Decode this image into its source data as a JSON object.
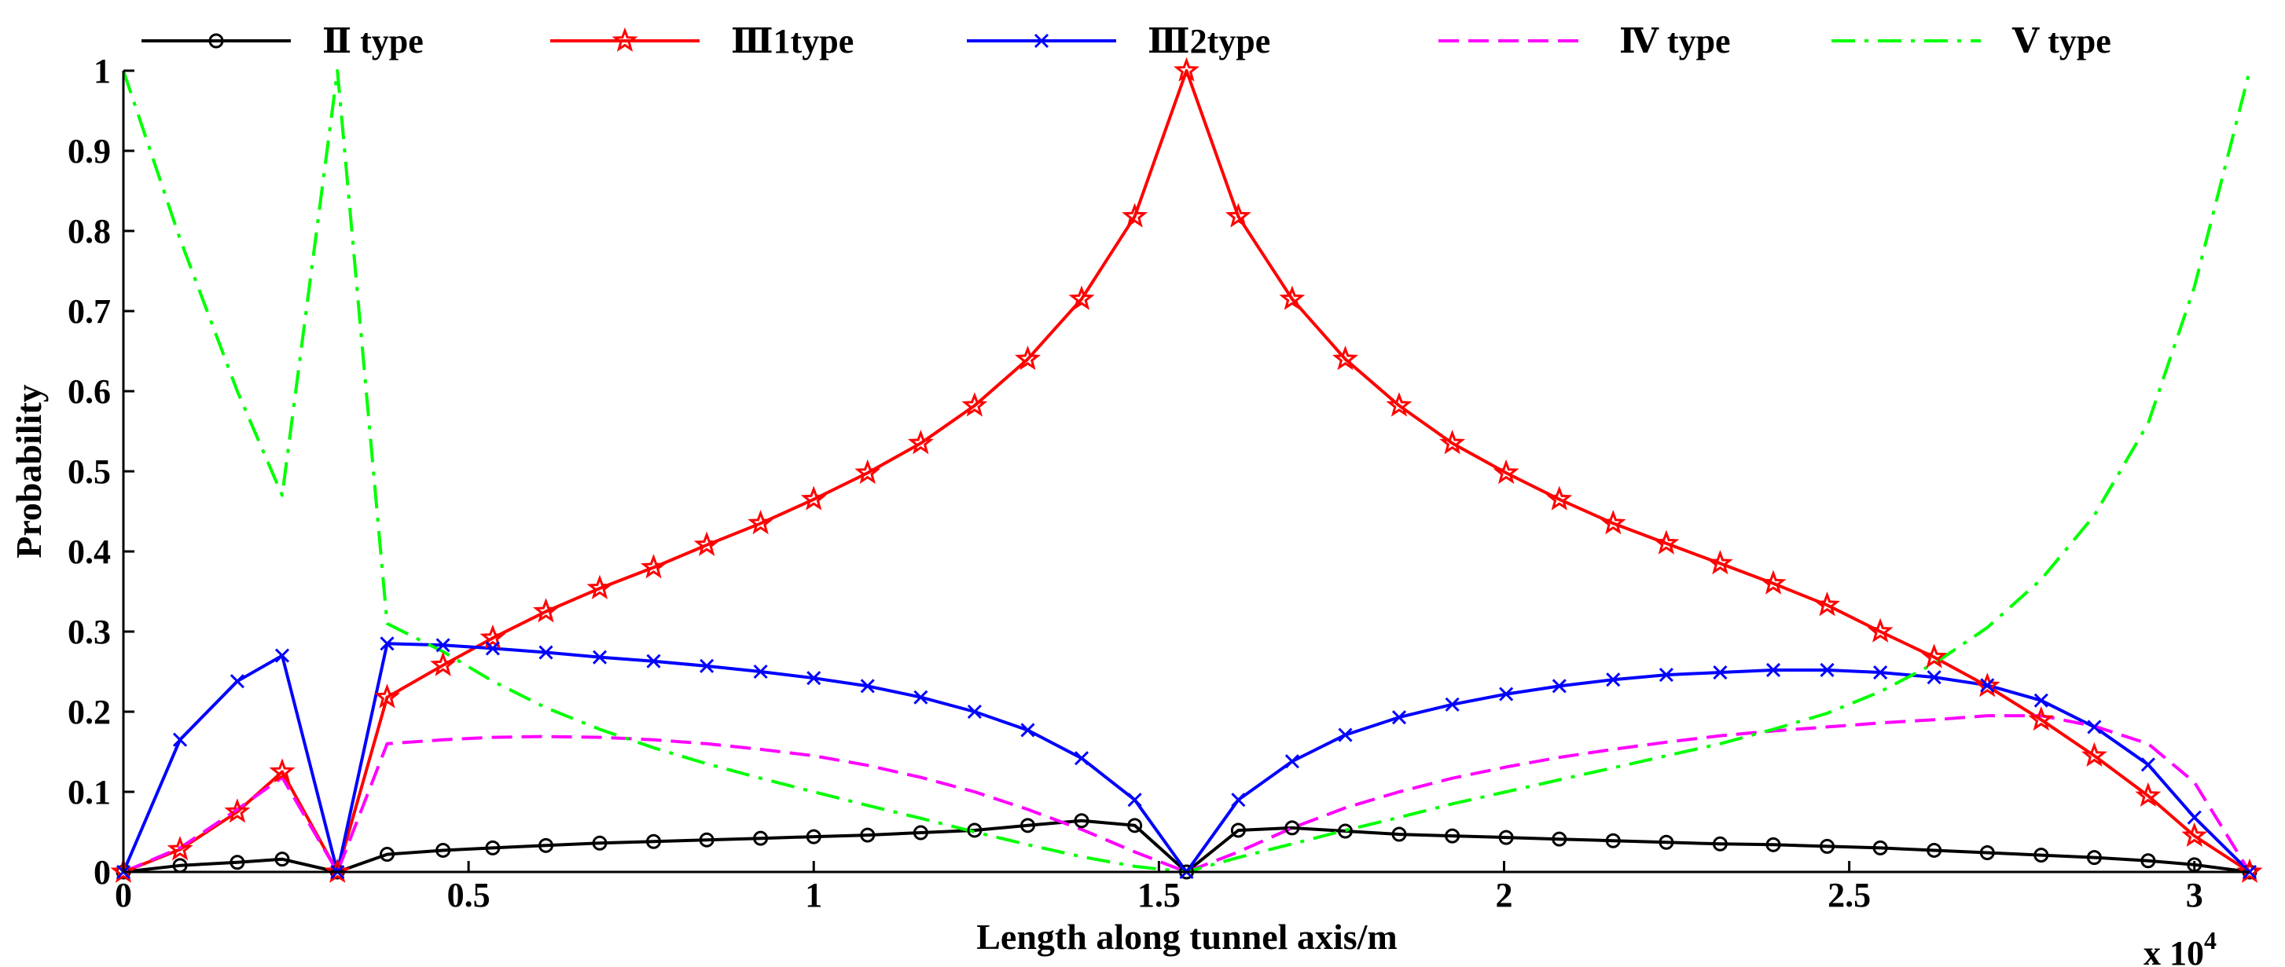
{
  "chart_data": {
    "type": "line",
    "title": "",
    "xlabel": "Length along tunnel axis/m",
    "ylabel": "Probability",
    "x_multiplier_label": "x 10",
    "x_multiplier_exponent": "4",
    "xlim": [
      0,
      3.08
    ],
    "ylim": [
      0,
      1
    ],
    "x_ticks": [
      0,
      0.5,
      1,
      1.5,
      2,
      2.5,
      3
    ],
    "x_tick_labels": [
      "0",
      "0.5",
      "1",
      "1.5",
      "2",
      "2.5",
      "3"
    ],
    "y_ticks": [
      0,
      0.1,
      0.2,
      0.3,
      0.4,
      0.5,
      0.6,
      0.7,
      0.8,
      0.9,
      1
    ],
    "y_tick_labels": [
      "0",
      "0.1",
      "0.2",
      "0.3",
      "0.4",
      "0.5",
      "0.6",
      "0.7",
      "0.8",
      "0.9",
      "1"
    ],
    "grid": false,
    "legend_position": "top",
    "series": [
      {
        "name": "Ⅱ type",
        "color": "#000000",
        "marker": "circle",
        "dash": "solid",
        "x": [
          0,
          0.082,
          0.165,
          0.23,
          0.31,
          0.382,
          0.463,
          0.535,
          0.612,
          0.69,
          0.768,
          0.845,
          0.923,
          1,
          1.078,
          1.155,
          1.233,
          1.31,
          1.388,
          1.465,
          1.54,
          1.615,
          1.693,
          1.77,
          1.848,
          1.925,
          2.003,
          2.08,
          2.158,
          2.235,
          2.313,
          2.39,
          2.468,
          2.545,
          2.623,
          2.7,
          2.778,
          2.855,
          2.933,
          3,
          3.08
        ],
        "y": [
          0,
          0.008,
          0.012,
          0.016,
          0,
          0.022,
          0.027,
          0.03,
          0.033,
          0.036,
          0.038,
          0.04,
          0.042,
          0.044,
          0.046,
          0.049,
          0.052,
          0.058,
          0.064,
          0.058,
          0,
          0.052,
          0.055,
          0.051,
          0.047,
          0.045,
          0.043,
          0.041,
          0.039,
          0.037,
          0.035,
          0.034,
          0.032,
          0.03,
          0.027,
          0.024,
          0.021,
          0.018,
          0.014,
          0.009,
          0
        ]
      },
      {
        "name": "Ⅲ1type",
        "color": "#ff0000",
        "marker": "star",
        "dash": "solid",
        "x": [
          0,
          0.082,
          0.165,
          0.23,
          0.31,
          0.382,
          0.463,
          0.535,
          0.612,
          0.69,
          0.768,
          0.845,
          0.923,
          1,
          1.078,
          1.155,
          1.233,
          1.31,
          1.388,
          1.465,
          1.54,
          1.615,
          1.693,
          1.77,
          1.848,
          1.925,
          2.003,
          2.08,
          2.158,
          2.235,
          2.313,
          2.39,
          2.468,
          2.545,
          2.623,
          2.7,
          2.778,
          2.855,
          2.933,
          3,
          3.08
        ],
        "y": [
          0,
          0.028,
          0.075,
          0.125,
          0,
          0.218,
          0.258,
          0.292,
          0.325,
          0.354,
          0.38,
          0.408,
          0.435,
          0.465,
          0.498,
          0.535,
          0.582,
          0.64,
          0.715,
          0.818,
          1,
          0.818,
          0.715,
          0.64,
          0.582,
          0.535,
          0.498,
          0.465,
          0.435,
          0.41,
          0.385,
          0.36,
          0.333,
          0.3,
          0.268,
          0.232,
          0.19,
          0.145,
          0.095,
          0.045,
          0
        ]
      },
      {
        "name": "Ⅲ2type",
        "color": "#0000ff",
        "marker": "x",
        "dash": "solid",
        "x": [
          0,
          0.082,
          0.165,
          0.23,
          0.31,
          0.382,
          0.463,
          0.535,
          0.612,
          0.69,
          0.768,
          0.845,
          0.923,
          1,
          1.078,
          1.155,
          1.233,
          1.31,
          1.388,
          1.465,
          1.54,
          1.615,
          1.693,
          1.77,
          1.848,
          1.925,
          2.003,
          2.08,
          2.158,
          2.235,
          2.313,
          2.39,
          2.468,
          2.545,
          2.623,
          2.7,
          2.778,
          2.855,
          2.933,
          3,
          3.08
        ],
        "y": [
          0,
          0.165,
          0.238,
          0.27,
          0,
          0.285,
          0.283,
          0.279,
          0.274,
          0.268,
          0.263,
          0.257,
          0.25,
          0.242,
          0.232,
          0.218,
          0.2,
          0.177,
          0.142,
          0.09,
          0,
          0.09,
          0.138,
          0.171,
          0.193,
          0.209,
          0.222,
          0.232,
          0.24,
          0.246,
          0.249,
          0.252,
          0.252,
          0.249,
          0.243,
          0.233,
          0.214,
          0.181,
          0.134,
          0.068,
          0
        ]
      },
      {
        "name": "Ⅳ type",
        "color": "#ff00ff",
        "marker": "none",
        "dash": "dashed",
        "x": [
          0,
          0.082,
          0.165,
          0.23,
          0.31,
          0.382,
          0.463,
          0.535,
          0.612,
          0.69,
          0.768,
          0.845,
          0.923,
          1,
          1.078,
          1.155,
          1.233,
          1.31,
          1.388,
          1.465,
          1.54,
          1.615,
          1.693,
          1.77,
          1.848,
          1.925,
          2.003,
          2.08,
          2.158,
          2.235,
          2.313,
          2.39,
          2.468,
          2.545,
          2.623,
          2.7,
          2.778,
          2.855,
          2.933,
          3,
          3.08
        ],
        "y": [
          0,
          0.03,
          0.078,
          0.118,
          0,
          0.16,
          0.165,
          0.168,
          0.169,
          0.168,
          0.165,
          0.16,
          0.153,
          0.145,
          0.133,
          0.118,
          0.1,
          0.078,
          0.053,
          0.025,
          0,
          0.025,
          0.055,
          0.08,
          0.1,
          0.117,
          0.131,
          0.143,
          0.153,
          0.162,
          0.17,
          0.176,
          0.181,
          0.186,
          0.19,
          0.195,
          0.195,
          0.182,
          0.16,
          0.112,
          0
        ]
      },
      {
        "name": "Ⅴ type",
        "color": "#00ff00",
        "marker": "none",
        "dash": "dashdot",
        "x": [
          0,
          0.082,
          0.165,
          0.23,
          0.31,
          0.382,
          0.463,
          0.535,
          0.612,
          0.69,
          0.768,
          0.845,
          0.923,
          1,
          1.078,
          1.155,
          1.233,
          1.31,
          1.388,
          1.465,
          1.54,
          1.615,
          1.693,
          1.77,
          1.848,
          1.925,
          2.003,
          2.08,
          2.158,
          2.235,
          2.313,
          2.39,
          2.468,
          2.545,
          2.623,
          2.7,
          2.778,
          2.855,
          2.933,
          3,
          3.08
        ],
        "y": [
          1,
          0.79,
          0.6,
          0.47,
          1,
          0.31,
          0.275,
          0.238,
          0.205,
          0.178,
          0.155,
          0.135,
          0.117,
          0.1,
          0.083,
          0.067,
          0.05,
          0.034,
          0.019,
          0.007,
          0,
          0.018,
          0.035,
          0.052,
          0.068,
          0.085,
          0.1,
          0.115,
          0.13,
          0.145,
          0.16,
          0.178,
          0.198,
          0.225,
          0.26,
          0.305,
          0.365,
          0.445,
          0.56,
          0.73,
          1
        ]
      }
    ]
  }
}
